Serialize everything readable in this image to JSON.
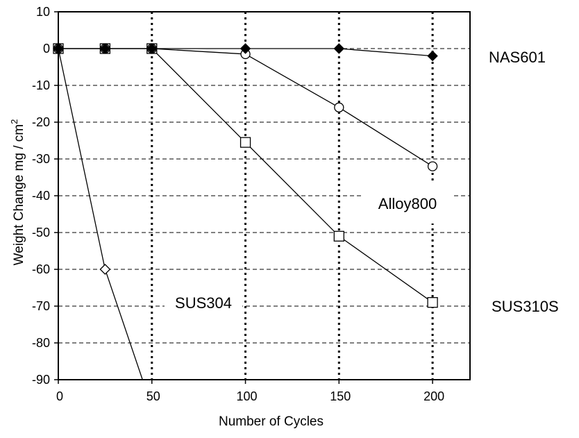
{
  "chart_data": {
    "type": "line",
    "xlabel": "Number of Cycles",
    "ylabel": "Weight  Change  mg / cm",
    "ylabel_superscript": "2",
    "xlim": [
      0,
      220
    ],
    "ylim": [
      -90,
      10
    ],
    "xticks": [
      0,
      50,
      100,
      150,
      200
    ],
    "yticks": [
      10,
      0,
      -10,
      -20,
      -30,
      -40,
      -50,
      -60,
      -70,
      -80,
      -90
    ],
    "grid": {
      "horizontal": "dashed",
      "vertical": "dotted"
    },
    "series": [
      {
        "name": "NAS601",
        "marker": "filled-diamond",
        "x": [
          0,
          25,
          50,
          100,
          150,
          200
        ],
        "y": [
          0,
          0,
          0,
          0,
          0,
          -2
        ]
      },
      {
        "name": "Alloy800",
        "marker": "open-circle",
        "x": [
          0,
          25,
          50,
          100,
          150,
          200
        ],
        "y": [
          0,
          0,
          0,
          -1.5,
          -16,
          -32
        ]
      },
      {
        "name": "SUS310S",
        "marker": "open-square",
        "x": [
          0,
          25,
          50,
          100,
          150,
          200
        ],
        "y": [
          0,
          0,
          0,
          -25.5,
          -51,
          -69
        ]
      },
      {
        "name": "SUS304",
        "marker": "open-diamond",
        "x": [
          0,
          25,
          45
        ],
        "y": [
          0,
          -60,
          -90
        ]
      }
    ]
  }
}
